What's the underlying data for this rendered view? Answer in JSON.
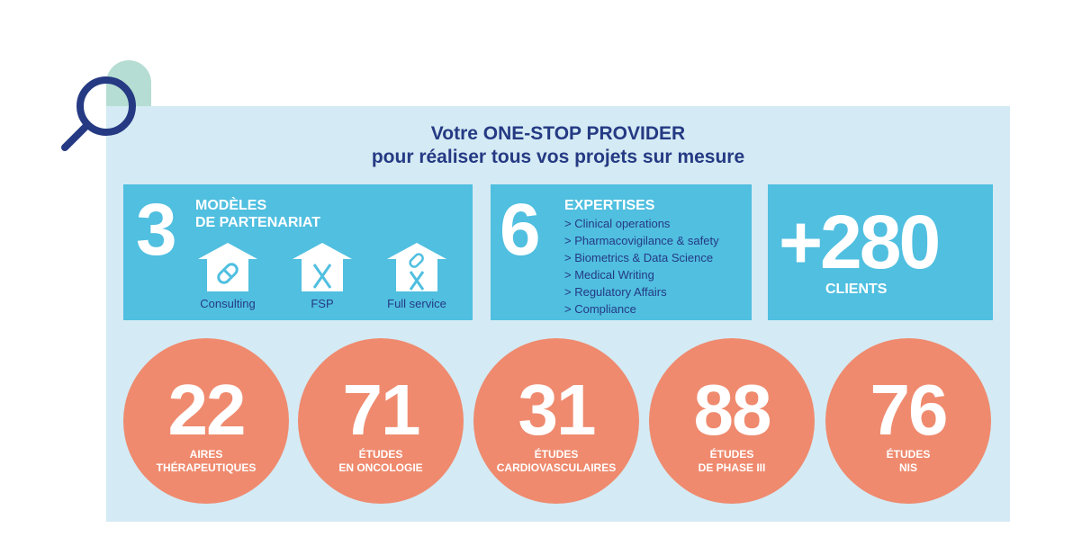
{
  "title": {
    "line1": "Votre ONE-STOP PROVIDER",
    "line2": "pour réaliser tous vos projets sur mesure"
  },
  "partnership": {
    "number": "3",
    "heading1": "MODÈLES",
    "heading2": "DE PARTENARIAT",
    "models": [
      {
        "label": "Consulting"
      },
      {
        "label": "FSP"
      },
      {
        "label": "Full service"
      }
    ]
  },
  "expertises": {
    "number": "6",
    "heading": "EXPERTISES",
    "items": [
      "> Clinical operations",
      "> Pharmacovigilance & safety",
      "> Biometrics & Data Science",
      "> Medical Writing",
      "> Regulatory Affairs",
      "> Compliance"
    ]
  },
  "clients": {
    "number": "+280",
    "label": "CLIENTS"
  },
  "stats": [
    {
      "number": "22",
      "line1": "AIRES",
      "line2": "THÉRAPEUTIQUES"
    },
    {
      "number": "71",
      "line1": "ÉTUDES",
      "line2": "EN ONCOLOGIE"
    },
    {
      "number": "31",
      "line1": "ÉTUDES",
      "line2": "CARDIOVASCULAIRES"
    },
    {
      "number": "88",
      "line1": "ÉTUDES",
      "line2": "DE PHASE III"
    },
    {
      "number": "76",
      "line1": "ÉTUDES",
      "line2": "NIS"
    }
  ],
  "colors": {
    "navy": "#253a83",
    "box": "#50bfe0",
    "panel": "#d4eaf4",
    "circle": "#ef8a6e"
  }
}
